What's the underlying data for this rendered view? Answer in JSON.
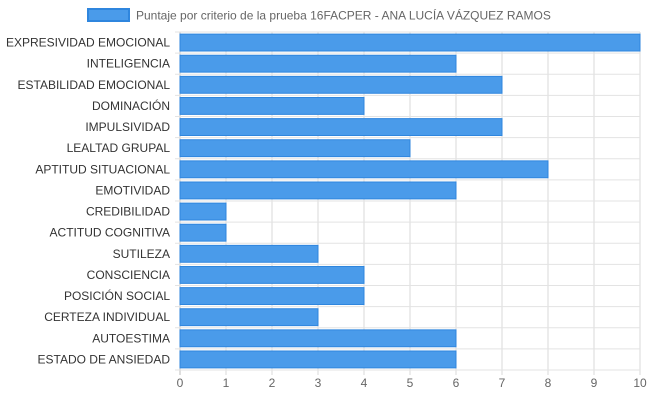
{
  "chart_data": {
    "type": "bar",
    "orientation": "horizontal",
    "categories": [
      "EXPRESIVIDAD EMOCIONAL",
      "INTELIGENCIA",
      "ESTABILIDAD EMOCIONAL",
      "DOMINACIÓN",
      "IMPULSIVIDAD",
      "LEALTAD GRUPAL",
      "APTITUD SITUACIONAL",
      "EMOTIVIDAD",
      "CREDIBILIDAD",
      "ACTITUD COGNITIVA",
      "SUTILEZA",
      "CONSCIENCIA",
      "POSICIÓN SOCIAL",
      "CERTEZA INDIVIDUAL",
      "AUTOESTIMA",
      "ESTADO DE ANSIEDAD"
    ],
    "series": [
      {
        "name": "Puntaje por criterio de la prueba 16FACPER - ANA LUCÍA VÁZQUEZ RAMOS",
        "values": [
          10,
          6,
          7,
          4,
          7,
          5,
          8,
          6,
          1,
          1,
          3,
          4,
          4,
          3,
          6,
          6
        ],
        "color": "#4a9bea",
        "border_color": "#2f86de"
      }
    ],
    "xlim": [
      0,
      10
    ],
    "x_ticks": [
      0,
      1,
      2,
      3,
      4,
      5,
      6,
      7,
      8,
      9,
      10
    ],
    "grid": true,
    "legend_position": "top"
  }
}
